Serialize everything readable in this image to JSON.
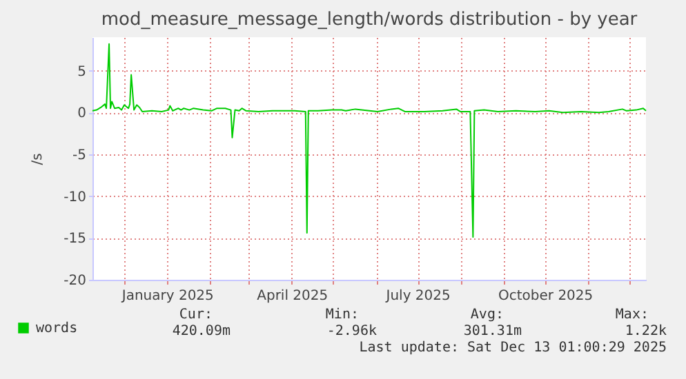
{
  "chart_data": {
    "type": "line",
    "title": "mod_measure_message_length/words distribution - by year",
    "ylabel": "/s",
    "x": [
      "2024-11-08",
      "2024-11-11",
      "2024-11-14",
      "2024-11-17",
      "2024-11-18",
      "2024-11-20",
      "2024-11-21",
      "2024-11-22",
      "2024-11-24",
      "2024-11-27",
      "2024-11-29",
      "2024-12-01",
      "2024-12-04",
      "2024-12-05",
      "2024-12-06",
      "2024-12-08",
      "2024-12-10",
      "2024-12-12",
      "2024-12-14",
      "2024-12-21",
      "2024-12-28",
      "2025-01-02",
      "2025-01-03",
      "2025-01-05",
      "2025-01-09",
      "2025-01-11",
      "2025-01-13",
      "2025-01-17",
      "2025-01-20",
      "2025-01-27",
      "2025-02-02",
      "2025-02-06",
      "2025-02-12",
      "2025-02-16",
      "2025-02-17",
      "2025-02-19",
      "2025-02-22",
      "2025-02-24",
      "2025-02-27",
      "2025-03-08",
      "2025-03-18",
      "2025-03-28",
      "2025-04-03",
      "2025-04-11",
      "2025-04-12",
      "2025-04-13",
      "2025-04-20",
      "2025-04-30",
      "2025-05-07",
      "2025-05-10",
      "2025-05-17",
      "2025-06-02",
      "2025-06-12",
      "2025-06-17",
      "2025-06-22",
      "2025-07-06",
      "2025-07-19",
      "2025-07-29",
      "2025-08-01",
      "2025-08-08",
      "2025-08-10",
      "2025-08-11",
      "2025-08-18",
      "2025-08-28",
      "2025-09-10",
      "2025-09-24",
      "2025-10-04",
      "2025-10-14",
      "2025-10-27",
      "2025-11-09",
      "2025-11-16",
      "2025-11-26",
      "2025-11-29",
      "2025-12-06",
      "2025-12-11",
      "2025-12-13"
    ],
    "series": [
      {
        "name": "words",
        "color": "#00cc00",
        "values": [
          0.2,
          0.3,
          0.6,
          1.0,
          0.5,
          8.2,
          0.5,
          1.3,
          0.5,
          0.6,
          0.3,
          0.9,
          0.5,
          1.0,
          4.5,
          0.3,
          0.9,
          0.6,
          0.1,
          0.2,
          0.1,
          0.3,
          0.8,
          0.2,
          0.5,
          0.3,
          0.5,
          0.3,
          0.5,
          0.3,
          0.2,
          0.5,
          0.5,
          0.3,
          -3.0,
          0.3,
          0.2,
          0.5,
          0.2,
          0.1,
          0.2,
          0.2,
          0.2,
          0.1,
          -14.4,
          0.2,
          0.2,
          0.3,
          0.3,
          0.2,
          0.4,
          0.1,
          0.4,
          0.5,
          0.1,
          0.1,
          0.2,
          0.4,
          0.1,
          0.1,
          -14.9,
          0.2,
          0.3,
          0.1,
          0.2,
          0.1,
          0.2,
          0.0,
          0.1,
          0.0,
          0.1,
          0.4,
          0.2,
          0.3,
          0.5,
          0.2
        ]
      }
    ],
    "xlim": [
      "2024-11-08",
      "2025-12-13"
    ],
    "xticks": [
      {
        "value": "2024-12-01",
        "label": null
      },
      {
        "value": "2025-01-01",
        "label": "January 2025"
      },
      {
        "value": "2025-02-01",
        "label": null
      },
      {
        "value": "2025-03-01",
        "label": null
      },
      {
        "value": "2025-04-01",
        "label": "April 2025"
      },
      {
        "value": "2025-05-01",
        "label": null
      },
      {
        "value": "2025-06-01",
        "label": null
      },
      {
        "value": "2025-07-01",
        "label": "July 2025"
      },
      {
        "value": "2025-08-01",
        "label": null
      },
      {
        "value": "2025-09-01",
        "label": null
      },
      {
        "value": "2025-10-01",
        "label": "October 2025"
      },
      {
        "value": "2025-11-01",
        "label": null
      },
      {
        "value": "2025-12-01",
        "label": null
      }
    ],
    "ylim": [
      -20,
      9
    ],
    "yticks": [
      -20,
      -15,
      -10,
      -5,
      0,
      5
    ],
    "grid": true,
    "legend": "bottom",
    "marker": "none",
    "line_style": "solid",
    "annotations": [
      "Cur:",
      "Min:",
      "Avg:",
      "Max:",
      "420.09m",
      "-2.96k",
      "301.31m",
      "1.22k",
      "Last update: Sat Dec 13 01:00:29 2025"
    ]
  }
}
